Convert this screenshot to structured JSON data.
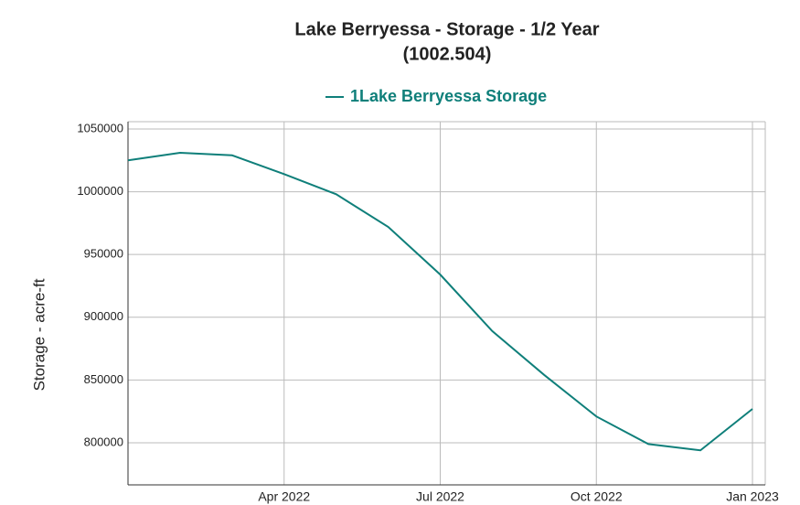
{
  "chart_data": {
    "type": "line",
    "title": "Lake Berryessa - Storage - 1/2 Year",
    "subtitle": "(1002.504)",
    "y_label": "Storage - acre-ft",
    "x": [
      "2022-01",
      "2022-02",
      "2022-03",
      "2022-04",
      "2022-05",
      "2022-06",
      "2022-07",
      "2022-08",
      "2022-09",
      "2022-10",
      "2022-11",
      "2022-12",
      "2023-01"
    ],
    "series": [
      {
        "name": "1Lake Berryessa Storage",
        "color": "#0f7f7a",
        "values": [
          1025000,
          1031000,
          1029000,
          1014000,
          998000,
          972000,
          934000,
          889000,
          854000,
          821000,
          799000,
          794000,
          827000
        ]
      }
    ],
    "xticks": [
      {
        "value": "2022-04",
        "label": "Apr 2022"
      },
      {
        "value": "2022-07",
        "label": "Jul 2022"
      },
      {
        "value": "2022-10",
        "label": "Oct 2022"
      },
      {
        "value": "2023-01",
        "label": "Jan 2023"
      }
    ],
    "ylim": [
      766500,
      1055800
    ],
    "yticks": [
      800000,
      850000,
      900000,
      950000,
      1000000,
      1050000
    ],
    "grid": true
  }
}
